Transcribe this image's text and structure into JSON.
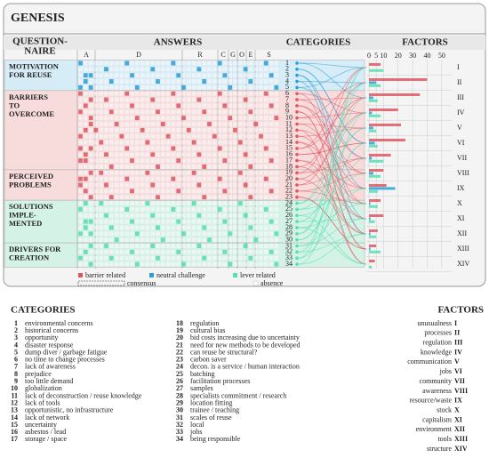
{
  "title": "GENESIS",
  "questionnaire_heading": [
    "QUESTION-",
    "NAIRE"
  ],
  "answers_heading": "ANSWERS",
  "categories_heading": "CATEGORIES",
  "factors_heading": "FACTORS",
  "answer_columns": [
    "A",
    "D",
    "R",
    "C",
    "G",
    "O",
    "E",
    "S"
  ],
  "groups": [
    [
      "MOTIVATION",
      "FOR REUSE"
    ],
    [
      "BARRIERS",
      "TO",
      "OVERCOME"
    ],
    [
      "PERCEIVED",
      "PROBLEMS"
    ],
    [
      "SOLUTIONS",
      "IMPLE-",
      "MENTED"
    ],
    [
      "DRIVERS FOR",
      "CREATION"
    ]
  ],
  "legend_extra": [
    "consensus",
    "absence"
  ],
  "chart_data": {
    "type": "bar",
    "categories": [
      "I",
      "II",
      "III",
      "IV",
      "V",
      "VI",
      "VII",
      "VIII",
      "IX",
      "X",
      "XI",
      "XII",
      "XIII",
      "XIV"
    ],
    "series": [
      {
        "name": "barrier related",
        "color": "#e05660",
        "values": [
          8,
          40,
          35,
          20,
          22,
          25,
          15,
          10,
          12,
          8,
          10,
          6,
          5,
          4
        ]
      },
      {
        "name": "neutral challenge",
        "color": "#2a9fd6",
        "values": [
          0,
          5,
          3,
          2,
          3,
          4,
          2,
          3,
          18,
          1,
          1,
          1,
          1,
          0
        ]
      },
      {
        "name": "lever related",
        "color": "#52e0b4",
        "values": [
          10,
          8,
          6,
          8,
          5,
          6,
          10,
          8,
          6,
          6,
          4,
          5,
          8,
          2
        ]
      }
    ],
    "xlim": [
      0,
      55
    ],
    "xticks": [
      0,
      5,
      10,
      20,
      30,
      40,
      50
    ]
  },
  "categories": [
    {
      "number": 1,
      "name": "environmental concerns"
    },
    {
      "number": 2,
      "name": "historical concerns"
    },
    {
      "number": 3,
      "name": "opportunity"
    },
    {
      "number": 4,
      "name": "disaster response"
    },
    {
      "number": 5,
      "name": "dump diver / garbage fatigue"
    },
    {
      "number": 6,
      "name": "no time to change processes"
    },
    {
      "number": 7,
      "name": "lack of awareness"
    },
    {
      "number": 8,
      "name": "prejudice"
    },
    {
      "number": 9,
      "name": "too little demand"
    },
    {
      "number": 10,
      "name": "globalization"
    },
    {
      "number": 11,
      "name": "lack of deconstruction / reuse knowledge"
    },
    {
      "number": 12,
      "name": "lack of tools"
    },
    {
      "number": 13,
      "name": "opportunistic, no infrastructure"
    },
    {
      "number": 14,
      "name": "lack of network"
    },
    {
      "number": 15,
      "name": "uncertainty"
    },
    {
      "number": 16,
      "name": "asbestos / lead"
    },
    {
      "number": 17,
      "name": "storage / space"
    },
    {
      "number": 18,
      "name": "regulation"
    },
    {
      "number": 19,
      "name": "cultural bias"
    },
    {
      "number": 20,
      "name": "bid costs increasing due to uncertainty"
    },
    {
      "number": 21,
      "name": "need for new methods to be developed"
    },
    {
      "number": 22,
      "name": "can reuse be structural?"
    },
    {
      "number": 23,
      "name": "carbon saver"
    },
    {
      "number": 24,
      "name": "decon. is a service / human interaction"
    },
    {
      "number": 25,
      "name": "batching"
    },
    {
      "number": 26,
      "name": "facilitation processes"
    },
    {
      "number": 27,
      "name": "samples"
    },
    {
      "number": 28,
      "name": "specialists commitment / research"
    },
    {
      "number": 29,
      "name": "location fitting"
    },
    {
      "number": 30,
      "name": "trainee / teaching"
    },
    {
      "number": 31,
      "name": "scales of reuse"
    },
    {
      "number": 32,
      "name": "local"
    },
    {
      "number": 33,
      "name": "jobs"
    },
    {
      "number": 34,
      "name": "being responsible"
    }
  ],
  "factors": [
    {
      "name": "unusualness",
      "numeral": "I"
    },
    {
      "name": "processes",
      "numeral": "II"
    },
    {
      "name": "regulation",
      "numeral": "III"
    },
    {
      "name": "knowledge",
      "numeral": "IV"
    },
    {
      "name": "communication",
      "numeral": "V"
    },
    {
      "name": "jobs",
      "numeral": "VI"
    },
    {
      "name": "community",
      "numeral": "VII"
    },
    {
      "name": "awareness",
      "numeral": "VIII"
    },
    {
      "name": "resource/waste",
      "numeral": "IX"
    },
    {
      "name": "stock",
      "numeral": "X"
    },
    {
      "name": "capitalism",
      "numeral": "XI"
    },
    {
      "name": "environment",
      "numeral": "XII"
    },
    {
      "name": "tools",
      "numeral": "XIII"
    },
    {
      "name": "structure",
      "numeral": "XIV"
    }
  ]
}
